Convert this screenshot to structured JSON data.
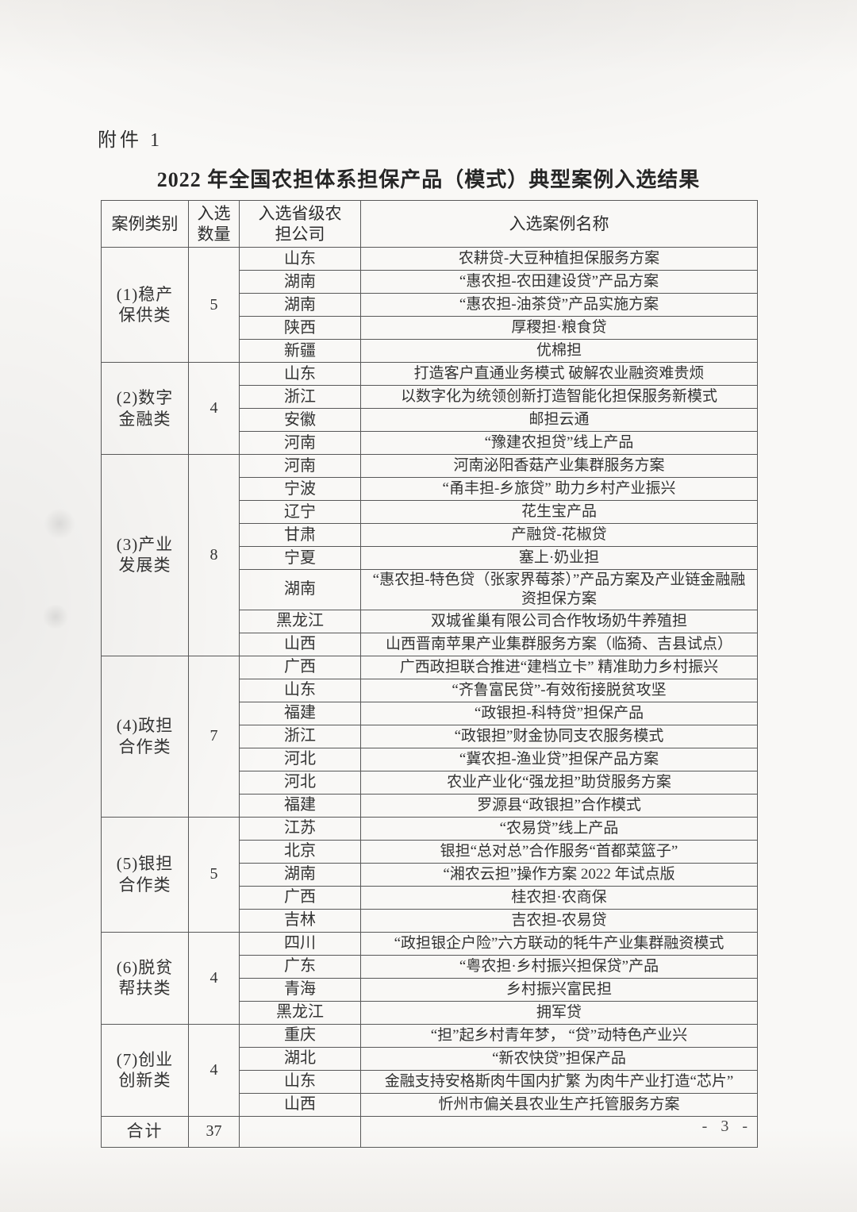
{
  "page": {
    "attachment_label": "附件 1",
    "title": "2022 年全国农担体系担保产品（模式）典型案例入选结果",
    "page_number": "- 3 -"
  },
  "colors": {
    "highlight_box": "#b5443c",
    "table_border": "#585858"
  },
  "table": {
    "headers": [
      "案例类别",
      "入选\n数量",
      "入选省级农\n担公司",
      "入选案例名称"
    ],
    "sections": [
      {
        "category": "(1)稳产\n保供类",
        "count": "5",
        "rows": [
          {
            "province": "山东",
            "case": "农耕贷-大豆种植担保服务方案"
          },
          {
            "province": "湖南",
            "case": "“惠农担-农田建设贷”产品方案"
          },
          {
            "province": "湖南",
            "case": "“惠农担-油茶贷”产品实施方案"
          },
          {
            "province": "陕西",
            "case": "厚稷担·粮食贷"
          },
          {
            "province": "新疆",
            "case": "优棉担"
          }
        ]
      },
      {
        "category": "(2)数字\n金融类",
        "count": "4",
        "rows": [
          {
            "province": "山东",
            "case": "打造客户直通业务模式 破解农业融资难贵烦"
          },
          {
            "province": "浙江",
            "case": "以数字化为统领创新打造智能化担保服务新模式"
          },
          {
            "province": "安徽",
            "case": "邮担云通"
          },
          {
            "province": "河南",
            "case": "“豫建农担贷”线上产品"
          }
        ]
      },
      {
        "category": "(3)产业\n发展类",
        "count": "8",
        "rows": [
          {
            "province": "河南",
            "case": "河南泌阳香菇产业集群服务方案"
          },
          {
            "province": "宁波",
            "case": "“甬丰担-乡旅贷” 助力乡村产业振兴"
          },
          {
            "province": "辽宁",
            "case": "花生宝产品"
          },
          {
            "province": "甘肃",
            "case": "产融贷-花椒贷"
          },
          {
            "province": "宁夏",
            "case": "塞上·奶业担"
          },
          {
            "province": "湖南",
            "case": "“惠农担-特色贷（张家界莓茶）”产品方案及产业链金融融资担保方案"
          },
          {
            "province": "黑龙江",
            "case": "双城雀巢有限公司合作牧场奶牛养殖担"
          },
          {
            "province": "山西",
            "case": "山西晋南苹果产业集群服务方案（临猗、吉县试点）",
            "highlight": true
          }
        ]
      },
      {
        "category": "(4)政担\n合作类",
        "count": "7",
        "rows": [
          {
            "province": "广西",
            "case": "广西政担联合推进“建档立卡” 精准助力乡村振兴"
          },
          {
            "province": "山东",
            "case": "“齐鲁富民贷”-有效衔接脱贫攻坚"
          },
          {
            "province": "福建",
            "case": "“政银担-科特贷”担保产品"
          },
          {
            "province": "浙江",
            "case": "“政银担”财金协同支农服务模式"
          },
          {
            "province": "河北",
            "case": "“冀农担-渔业贷”担保产品方案"
          },
          {
            "province": "河北",
            "case": "农业产业化“强龙担”助贷服务方案"
          },
          {
            "province": "福建",
            "case": "罗源县“政银担”合作模式"
          }
        ]
      },
      {
        "category": "(5)银担\n合作类",
        "count": "5",
        "rows": [
          {
            "province": "江苏",
            "case": "“农易贷”线上产品"
          },
          {
            "province": "北京",
            "case": "银担“总对总”合作服务“首都菜篮子”"
          },
          {
            "province": "湖南",
            "case": "“湘农云担”操作方案 2022 年试点版"
          },
          {
            "province": "广西",
            "case": "桂农担·农商保"
          },
          {
            "province": "吉林",
            "case": "吉农担-农易贷"
          }
        ]
      },
      {
        "category": "(6)脱贫\n帮扶类",
        "count": "4",
        "rows": [
          {
            "province": "四川",
            "case": "“政担银企户险”六方联动的牦牛产业集群融资模式"
          },
          {
            "province": "广东",
            "case": "“粤农担·乡村振兴担保贷”产品"
          },
          {
            "province": "青海",
            "case": "乡村振兴富民担"
          },
          {
            "province": "黑龙江",
            "case": "拥军贷"
          }
        ]
      },
      {
        "category": "(7)创业\n创新类",
        "count": "4",
        "rows": [
          {
            "province": "重庆",
            "case": "“担”起乡村青年梦， “贷”动特色产业兴"
          },
          {
            "province": "湖北",
            "case": "“新农快贷”担保产品"
          },
          {
            "province": "山东",
            "case": "金融支持安格斯肉牛国内扩繁 为肉牛产业打造“芯片”"
          },
          {
            "province": "山西",
            "case": "忻州市偏关县农业生产托管服务方案",
            "highlight": true
          }
        ]
      }
    ],
    "total": {
      "label": "合计",
      "value": "37"
    }
  }
}
